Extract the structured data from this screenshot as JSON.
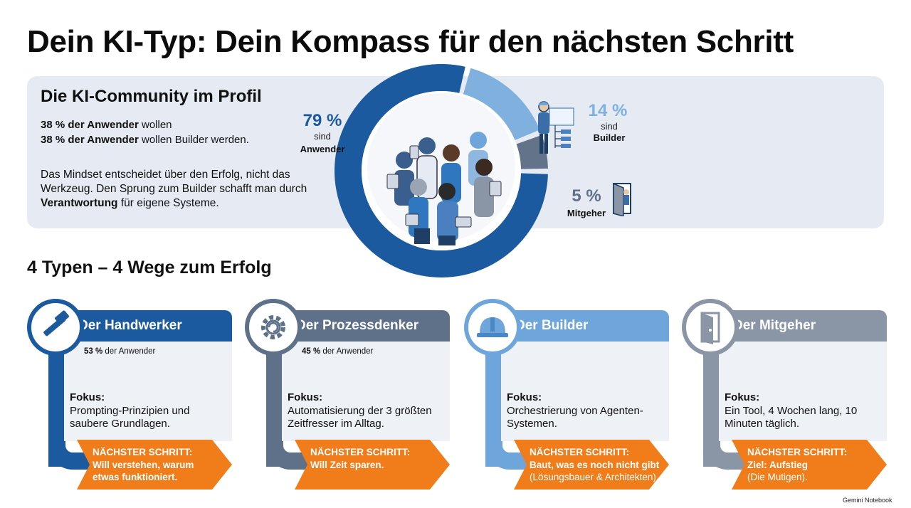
{
  "title": "Dein KI-Typ: Dein Kompass für den nächsten Schritt",
  "profile": {
    "heading": "Die KI-Community im Profil",
    "line1_bold": "38 % der Anwender",
    "line1_rest": " wollen",
    "line2_bold": "38 % der Anwender",
    "line2_rest": " wollen Builder werden.",
    "mindset_text": "Das Mindset entscheidet über den Erfolg, nicht das Werkzeug. Den Sprung zum Builder schafft man durch ",
    "mindset_bold": "Verantwortung",
    "mindset_end": " für eigene Systeme."
  },
  "donut": {
    "segments": [
      {
        "pct": "79 %",
        "value": 79,
        "sub": "sind",
        "label": "Anwender",
        "color": "#1c5aa0"
      },
      {
        "pct": "14 %",
        "value": 14,
        "sub": "sind",
        "label": "Builder",
        "color": "#7fb0de"
      },
      {
        "pct": "5 %",
        "value": 5,
        "sub": "",
        "label": "Mitgeher",
        "color": "#63748a"
      }
    ]
  },
  "types_heading": "4 Typen – 4 Wege zum Erfolg",
  "cards": [
    {
      "title": "Der Handwerker",
      "color": "#1c5aa0",
      "icon": "hammer-icon",
      "share_bold": "53 %",
      "share_rest": " der Anwender",
      "focus_label": "Fokus:",
      "focus_text": "Prompting-Prinzipien und saubere Grundlagen.",
      "next_label": "NÄCHSTER SCHRITT:",
      "next_text_1": "Will verstehen, warum",
      "next_text_2": "etwas funktioniert.",
      "next_sub": ""
    },
    {
      "title": "Der Prozessdenker",
      "color": "#5f7189",
      "icon": "gear-icon",
      "share_bold": "45 %",
      "share_rest": " der Anwender",
      "focus_label": "Fokus:",
      "focus_text": "Automatisierung der 3 größten Zeitfresser im Alltag.",
      "next_label": "NÄCHSTER SCHRITT:",
      "next_text_1": "Will Zeit sparen.",
      "next_text_2": "",
      "next_sub": ""
    },
    {
      "title": "Der Builder",
      "color": "#6ea6dc",
      "icon": "hardhat-icon",
      "share_bold": "",
      "share_rest": "",
      "focus_label": "Fokus:",
      "focus_text": "Orchestrierung von Agenten-Systemen.",
      "next_label": "NÄCHSTER SCHRITT:",
      "next_text_1": "Baut, was es noch nicht gibt",
      "next_text_2": "",
      "next_sub": "(Lösungsbauer & Architekten)."
    },
    {
      "title": "Der Mitgeher",
      "color": "#8a95a6",
      "icon": "door-icon",
      "share_bold": "",
      "share_rest": "",
      "focus_label": "Fokus:",
      "focus_text": "Ein Tool, 4 Wochen lang, 10 Minuten täglich.",
      "next_label": "NÄCHSTER SCHRITT:",
      "next_text_1": "Ziel: Aufstieg",
      "next_text_2": "",
      "next_sub": "(Die Mutigen)."
    }
  ],
  "accent_orange": "#f07d1a",
  "footer": "Gemini Notebook"
}
